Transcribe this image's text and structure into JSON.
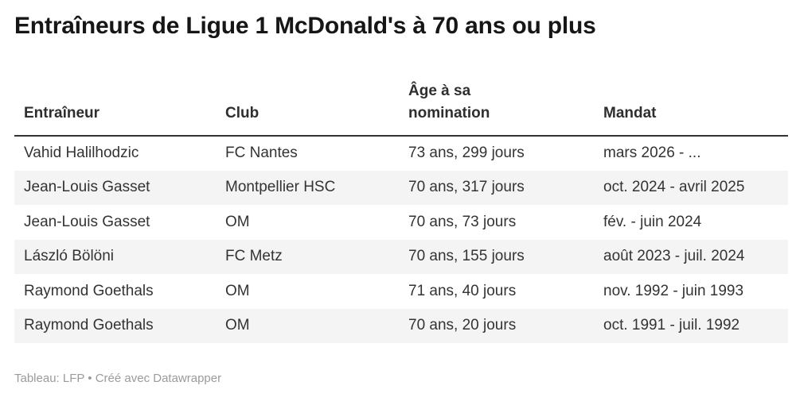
{
  "title": "Entraîneurs de Ligue 1 McDonald's à 70 ans ou plus",
  "footer": "Tableau: LFP • Créé avec Datawrapper",
  "colors": {
    "background": "#ffffff",
    "title_text": "#161616",
    "body_text": "#333333",
    "header_border": "#333333",
    "row_stripe": "#f4f4f4",
    "footer_text": "#9b9b9b"
  },
  "chart_data": {
    "type": "table",
    "title": "Entraîneurs de Ligue 1 McDonald's à 70 ans ou plus",
    "columns": [
      "Entraîneur",
      "Club",
      "Âge à sa\nnomination",
      "Mandat"
    ],
    "rows": [
      [
        "Vahid Halilhodzic",
        "FC Nantes",
        "73 ans, 299 jours",
        "mars 2026 - ..."
      ],
      [
        "Jean-Louis Gasset",
        "Montpellier HSC",
        "70 ans, 317 jours",
        "oct. 2024 - avril 2025"
      ],
      [
        "Jean-Louis Gasset",
        "OM",
        "70 ans, 73 jours",
        "fév. - juin 2024"
      ],
      [
        "László Bölöni",
        "FC Metz",
        "70 ans, 155 jours",
        "août 2023 - juil. 2024"
      ],
      [
        "Raymond Goethals",
        "OM",
        "71 ans, 40 jours",
        "nov. 1992 - juin 1993"
      ],
      [
        "Raymond Goethals",
        "OM",
        "70 ans, 20 jours",
        "oct. 1991 - juil. 1992"
      ]
    ],
    "layout": {
      "striped_rows": true,
      "stripe_start_row": 2,
      "header_alignment": "left",
      "cell_alignment": "left"
    },
    "source": "LFP",
    "tool": "Datawrapper"
  }
}
